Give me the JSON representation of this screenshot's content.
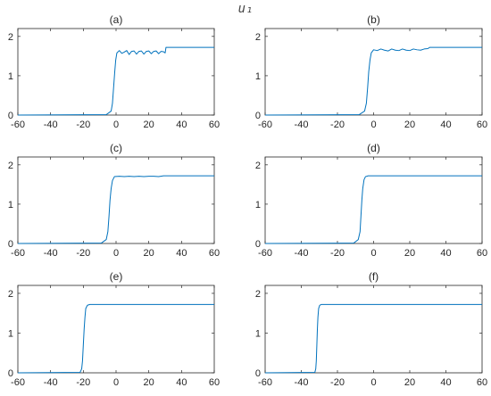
{
  "figure": {
    "title": "u₁"
  },
  "chart_data": [
    {
      "type": "line",
      "title": "(a)",
      "xlim": [
        -60,
        60
      ],
      "ylim": [
        0,
        2.2
      ],
      "xticks": [
        -60,
        -40,
        -20,
        0,
        20,
        40,
        60
      ],
      "yticks": [
        0,
        1,
        2
      ],
      "grid": false,
      "color": "#0072BD",
      "x": [
        -60,
        -6,
        -3,
        -2.2,
        -1.5,
        -0.8,
        -0.2,
        0.5,
        2,
        3.5,
        5,
        6.5,
        8,
        9.5,
        11,
        12.5,
        14,
        15.5,
        17,
        18.5,
        20,
        21.5,
        23,
        24.5,
        26,
        27.5,
        29,
        30,
        30.5,
        60
      ],
      "y": [
        0,
        0.01,
        0.1,
        0.3,
        0.7,
        1.1,
        1.4,
        1.58,
        1.64,
        1.57,
        1.6,
        1.64,
        1.54,
        1.62,
        1.63,
        1.55,
        1.62,
        1.63,
        1.55,
        1.62,
        1.63,
        1.56,
        1.62,
        1.63,
        1.56,
        1.62,
        1.61,
        1.58,
        1.72,
        1.72
      ]
    },
    {
      "type": "line",
      "title": "(b)",
      "xlim": [
        -60,
        60
      ],
      "ylim": [
        0,
        2.2
      ],
      "xticks": [
        -60,
        -40,
        -20,
        0,
        20,
        40,
        60
      ],
      "yticks": [
        0,
        1,
        2
      ],
      "grid": false,
      "color": "#0072BD",
      "x": [
        -60,
        -8,
        -5,
        -4,
        -3.3,
        -2.7,
        -2,
        -1.3,
        0,
        2,
        4,
        6,
        8,
        10,
        12,
        14,
        16,
        18,
        20,
        22,
        24,
        26,
        28,
        30,
        31,
        60
      ],
      "y": [
        0,
        0.01,
        0.1,
        0.3,
        0.7,
        1.1,
        1.4,
        1.58,
        1.66,
        1.64,
        1.68,
        1.65,
        1.63,
        1.68,
        1.65,
        1.64,
        1.68,
        1.65,
        1.64,
        1.68,
        1.66,
        1.65,
        1.68,
        1.69,
        1.72,
        1.72
      ]
    },
    {
      "type": "line",
      "title": "(c)",
      "xlim": [
        -60,
        60
      ],
      "ylim": [
        0,
        2.2
      ],
      "xticks": [
        -60,
        -40,
        -20,
        0,
        20,
        40,
        60
      ],
      "yticks": [
        0,
        1,
        2
      ],
      "grid": false,
      "color": "#0072BD",
      "x": [
        -60,
        -9,
        -6,
        -5,
        -4.3,
        -3.7,
        -3,
        -2.2,
        -1,
        2,
        5,
        8,
        11,
        14,
        17,
        20,
        23,
        26,
        29,
        32,
        60
      ],
      "y": [
        0,
        0.01,
        0.1,
        0.3,
        0.7,
        1.1,
        1.4,
        1.6,
        1.7,
        1.71,
        1.7,
        1.71,
        1.7,
        1.71,
        1.7,
        1.71,
        1.71,
        1.7,
        1.72,
        1.72,
        1.72
      ]
    },
    {
      "type": "line",
      "title": "(d)",
      "xlim": [
        -60,
        60
      ],
      "ylim": [
        0,
        2.2
      ],
      "xticks": [
        -60,
        -40,
        -20,
        0,
        20,
        40,
        60
      ],
      "yticks": [
        0,
        1,
        2
      ],
      "grid": false,
      "color": "#0072BD",
      "x": [
        -60,
        -11,
        -8.5,
        -7.5,
        -7,
        -6.5,
        -6,
        -5.3,
        -4.5,
        -3,
        60
      ],
      "y": [
        0,
        0.01,
        0.1,
        0.3,
        0.7,
        1.1,
        1.4,
        1.62,
        1.7,
        1.72,
        1.72
      ]
    },
    {
      "type": "line",
      "title": "(e)",
      "xlim": [
        -60,
        60
      ],
      "ylim": [
        0,
        2.2
      ],
      "xticks": [
        -60,
        -40,
        -20,
        0,
        20,
        40,
        60
      ],
      "yticks": [
        0,
        1,
        2
      ],
      "grid": false,
      "color": "#0072BD",
      "x": [
        -60,
        -22,
        -21,
        -20.5,
        -20,
        -19.5,
        -19,
        -18.5,
        -17.5,
        -16,
        60
      ],
      "y": [
        0,
        0.01,
        0.1,
        0.3,
        0.7,
        1.1,
        1.4,
        1.62,
        1.7,
        1.72,
        1.72
      ]
    },
    {
      "type": "line",
      "title": "(f)",
      "xlim": [
        -60,
        60
      ],
      "ylim": [
        0,
        2.2
      ],
      "xticks": [
        -60,
        -40,
        -20,
        0,
        20,
        40,
        60
      ],
      "yticks": [
        0,
        1,
        2
      ],
      "grid": false,
      "color": "#0072BD",
      "x": [
        -60,
        -32.5,
        -32,
        -31.7,
        -31.4,
        -31.1,
        -30.8,
        -30.4,
        -29.8,
        -29,
        60
      ],
      "y": [
        0,
        0.01,
        0.1,
        0.3,
        0.7,
        1.1,
        1.4,
        1.62,
        1.7,
        1.72,
        1.72
      ]
    }
  ]
}
